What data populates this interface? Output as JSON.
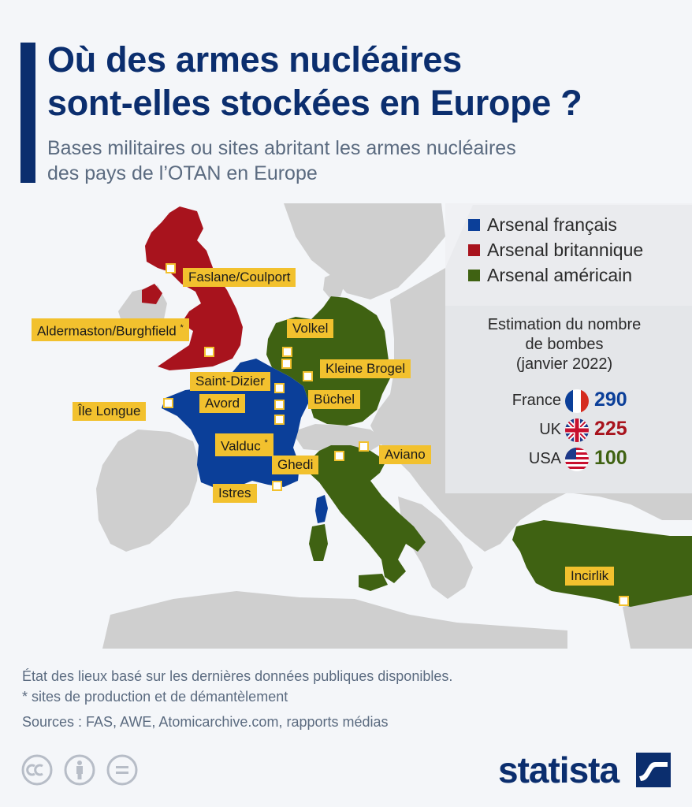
{
  "header": {
    "title_line1": "Où des armes nucléaires",
    "title_line2": "sont-elles stockées en Europe ?",
    "subtitle_line1": "Bases militaires ou sites abritant les armes nucléaires",
    "subtitle_line2": "des pays de l’OTAN en Europe"
  },
  "colors": {
    "france": "#0b3f99",
    "uk": "#a8131d",
    "usa": "#3f6212",
    "other_land": "#cfcfcf",
    "sea": "#f4f6f9",
    "marker": "#f2c12e",
    "accent": "#0b2e6e"
  },
  "legend": {
    "items": [
      {
        "label": "Arsenal français",
        "color": "#0b3f99"
      },
      {
        "label": "Arsenal britannique",
        "color": "#a8131d"
      },
      {
        "label": "Arsenal américain",
        "color": "#3f6212"
      }
    ]
  },
  "estimate": {
    "title_line1": "Estimation du nombre",
    "title_line2": "de bombes",
    "title_line3": "(janvier 2022)",
    "rows": [
      {
        "country": "France",
        "value": "290",
        "color": "#0b3f99",
        "flag": "france-flag-icon"
      },
      {
        "country": "UK",
        "value": "225",
        "color": "#a8131d",
        "flag": "uk-flag-icon"
      },
      {
        "country": "USA",
        "value": "100",
        "color": "#3f6212",
        "flag": "usa-flag-icon"
      }
    ]
  },
  "sites": {
    "faslane": "Faslane/Coulport",
    "aldermaston": "Aldermaston/Burghfield",
    "volkel": "Volkel",
    "kleine_brogel": "Kleine Brogel",
    "saint_dizier": "Saint-Dizier",
    "buchel": "Büchel",
    "avord": "Avord",
    "ile_longue": "Île Longue",
    "valduc": "Valduc",
    "ghedi": "Ghedi",
    "aviano": "Aviano",
    "istres": "Istres",
    "incirlik": "Incirlik",
    "production_marker": "*"
  },
  "footer": {
    "note_line1": "État des lieux basé sur les dernières données publiques disponibles.",
    "note_line2": "* sites de production et de démantèlement",
    "sources": "Sources : FAS, AWE, Atomicarchive.com, rapports médias",
    "brand": "statista"
  }
}
